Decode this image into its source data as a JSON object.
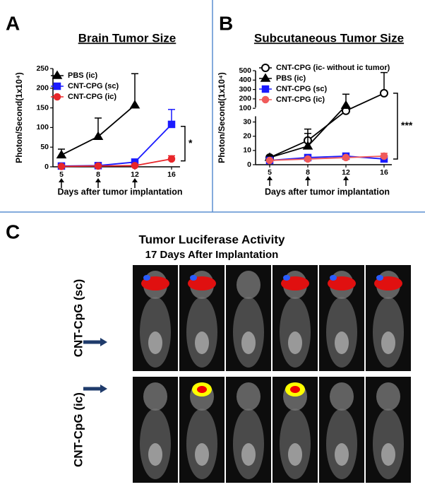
{
  "chart_data": [
    {
      "type": "line",
      "label": "A",
      "title": "Brain Tumor Size",
      "y_label": "Photon/Second(1x10⁴)",
      "x_label": "Days after tumor implantation",
      "categories": [
        "5",
        "8",
        "12",
        "16"
      ],
      "ylim": [
        0,
        250
      ],
      "yticks": [
        0,
        50,
        100,
        150,
        200,
        250
      ],
      "legend": "upper left",
      "series": [
        {
          "name": "PBS (ic)",
          "color": "#000000",
          "marker": "triangle",
          "values": [
            30,
            77,
            157,
            null
          ],
          "errors": [
            15,
            47,
            80,
            null
          ]
        },
        {
          "name": "CNT-CPG (sc)",
          "color": "#1a1aff",
          "marker": "square",
          "values": [
            2,
            3,
            12,
            108
          ],
          "errors": [
            1,
            1,
            2,
            38
          ]
        },
        {
          "name": "CNT-CPG (ic)",
          "color": "#e8262a",
          "marker": "circle",
          "values": [
            1,
            2,
            3,
            20
          ],
          "errors": [
            1,
            1,
            1,
            8
          ]
        }
      ],
      "annotations": [
        {
          "text": "*"
        }
      ]
    },
    {
      "type": "line",
      "label": "B",
      "title": "Subcutaneous Tumor Size",
      "y_label": "Photon/Second(1x10⁴)",
      "x_label": "Days after tumor implantation",
      "categories": [
        "5",
        "8",
        "12",
        "16"
      ],
      "ylim": [
        0,
        500
      ],
      "y_break": [
        35,
        100
      ],
      "yticks": [
        0,
        10,
        20,
        30,
        100,
        200,
        300,
        400,
        500
      ],
      "legend": "upper left",
      "series": [
        {
          "name": "CNT-CPG (ic- without ic tumor)",
          "color": "#000000",
          "marker": "open-circle",
          "values": [
            5,
            17,
            75,
            260
          ],
          "errors": [
            1,
            5,
            null,
            220
          ]
        },
        {
          "name": "PBS (ic)",
          "color": "#000000",
          "marker": "triangle",
          "values": [
            5,
            13,
            130,
            null
          ],
          "errors": [
            1,
            12,
            120,
            null
          ]
        },
        {
          "name": "CNT-CPG (sc)",
          "color": "#1a1aff",
          "marker": "square",
          "values": [
            3,
            5,
            6,
            4
          ],
          "errors": [
            null,
            null,
            null,
            null
          ]
        },
        {
          "name": "CNT-CPG (ic)",
          "color": "#f05a5a",
          "marker": "circle",
          "values": [
            3,
            4,
            5,
            6
          ],
          "errors": [
            null,
            null,
            null,
            2
          ]
        }
      ],
      "annotations": [
        {
          "text": "***"
        }
      ]
    }
  ],
  "image_panel": {
    "label": "C",
    "title": "Tumor Luciferase Activity",
    "subtitle": "17 Days After Implantation",
    "rows": [
      "CNT-CpG (sc)",
      "CNT-CpG (ic)"
    ]
  }
}
